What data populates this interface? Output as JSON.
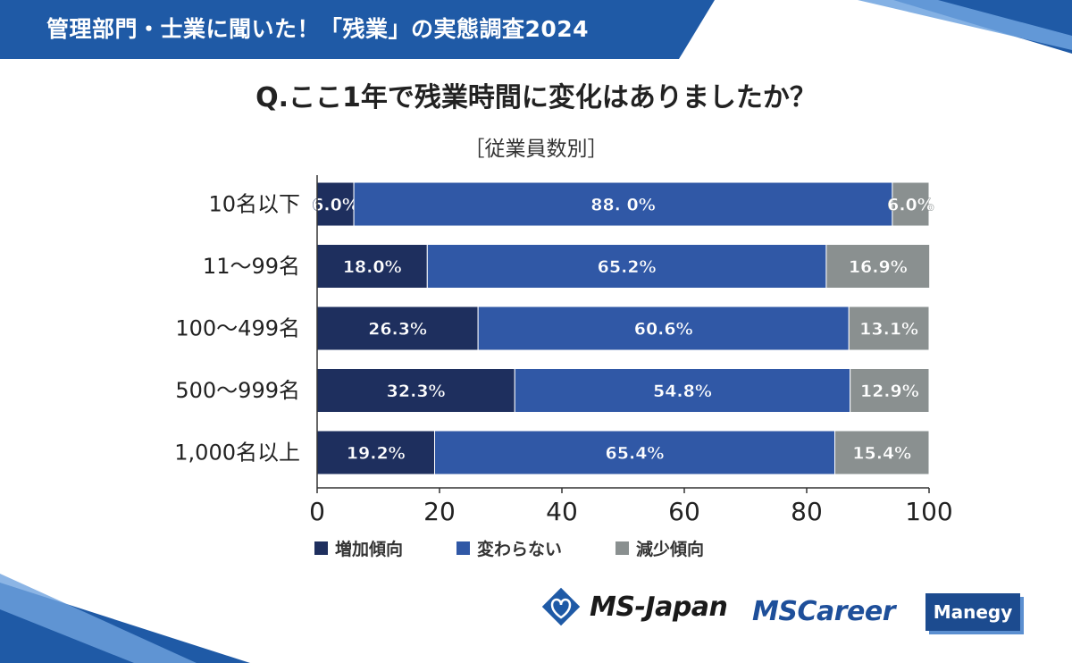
{
  "header": {
    "title": "管理部門・士業に聞いた！「残業」の実態調査2024"
  },
  "question": "Q.ここ1年で残業時間に変化はありましたか？",
  "subtitle": "［従業員数別］",
  "legend": [
    {
      "label": "増加傾向",
      "color": "#1e2f5e"
    },
    {
      "label": "変わらない",
      "color": "#3058a6"
    },
    {
      "label": "減少傾向",
      "color": "#8a9090"
    }
  ],
  "chart_data": {
    "type": "bar",
    "orientation": "horizontal",
    "stacked": true,
    "categories": [
      "10名以下",
      "11～99名",
      "100～499名",
      "500～999名",
      "1,000名以上"
    ],
    "series": [
      {
        "name": "増加傾向",
        "values": [
          6.0,
          18.0,
          26.3,
          32.3,
          19.2
        ],
        "labels": [
          "6.0%",
          "18.0%",
          "26.3%",
          "32.3%",
          "19.2%"
        ],
        "color": "#1e2f5e"
      },
      {
        "name": "変わらない",
        "values": [
          88.0,
          65.2,
          60.6,
          54.8,
          65.4
        ],
        "labels": [
          "88. 0%",
          "65.2%",
          "60.6%",
          "54.8%",
          "65.4%"
        ],
        "color": "#3058a6"
      },
      {
        "name": "減少傾向",
        "values": [
          6.0,
          16.9,
          13.1,
          12.9,
          15.4
        ],
        "labels": [
          "6.0%",
          "16.9%",
          "13.1%",
          "12.9%",
          "15.4%"
        ],
        "color": "#8a9090"
      }
    ],
    "xlim": [
      0,
      100
    ],
    "xticks": [
      "0",
      "20",
      "40",
      "60",
      "80",
      "100"
    ],
    "grid": false
  },
  "logos": {
    "ms_japan": "MS-Japan",
    "ms_career": "MSCareer",
    "manegy": "Manegy"
  }
}
